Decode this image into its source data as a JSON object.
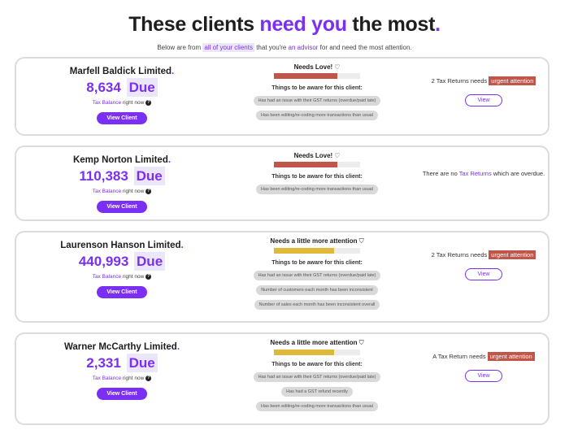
{
  "header": {
    "title_pre": "These clients ",
    "title_accent": "need you",
    "title_post": " the most",
    "title_dot": ".",
    "subtitle_pre": "Below are from ",
    "subtitle_highlight": "all of your clients",
    "subtitle_mid": " that you're ",
    "subtitle_link": "an advisor",
    "subtitle_post": " for and need the most attention."
  },
  "labels": {
    "due": "Due",
    "tax_balance": "Tax Balance",
    "right_now": " right now",
    "help_glyph": "?",
    "view_client": "View Client",
    "view": "View",
    "aware_heading": "Things to be aware for this client:",
    "urgent": "urgent attention"
  },
  "colors": {
    "accent": "#7b2ff2",
    "needs_love_bar": "#c0554a",
    "attention_bar": "#e0b93a",
    "bar_track": "#ececec"
  },
  "clients": [
    {
      "name": "Marfell Baldick Limited",
      "amount": "8,634",
      "status_label": "Needs Love!",
      "status_icon": "heart-outline-icon",
      "status_glyph": "♡",
      "level": 0.74,
      "bar_color": "#c0554a",
      "tags": [
        "Has had an issue with their GST returns (overdue/paid late)",
        "Has been editing/re-coding more transactions than usual"
      ],
      "summary_pre": "2 Tax Returns needs",
      "summary_urgent": true,
      "summary_link": "",
      "summary_post": "",
      "has_view": true
    },
    {
      "name": "Kemp Norton Limited",
      "amount": "110,383",
      "status_label": "Needs Love!",
      "status_icon": "heart-outline-icon",
      "status_glyph": "♡",
      "level": 0.74,
      "bar_color": "#c0554a",
      "tags": [
        "Has been editing/re-coding more transactions than usual"
      ],
      "summary_pre": "There are no ",
      "summary_urgent": false,
      "summary_link": "Tax Returns",
      "summary_post": " which are overdue.",
      "has_view": false
    },
    {
      "name": "Laurenson Hanson Limited",
      "amount": "440,993",
      "status_label": "Needs a little more attention",
      "status_icon": "shield-icon",
      "status_glyph": "⛉",
      "level": 0.7,
      "bar_color": "#e0b93a",
      "tags": [
        "Has had an issue with their GST returns (overdue/paid late)",
        "Number of customers each month has been inconsistent",
        "Number of sales each month has been inconsistent overall"
      ],
      "summary_pre": "2 Tax Returns needs",
      "summary_urgent": true,
      "summary_link": "",
      "summary_post": "",
      "has_view": true
    },
    {
      "name": "Warner McCarthy Limited",
      "amount": "2,331",
      "status_label": "Needs a little more attention",
      "status_icon": "shield-icon",
      "status_glyph": "⛉",
      "level": 0.7,
      "bar_color": "#e0b93a",
      "tags": [
        "Has had an issue with their GST returns (overdue/paid late)",
        "Has had a GST refund recently",
        "Has been editing/re-coding more transactions than usual"
      ],
      "summary_pre": "A Tax Return needs",
      "summary_urgent": true,
      "summary_link": "",
      "summary_post": "",
      "has_view": true
    }
  ]
}
